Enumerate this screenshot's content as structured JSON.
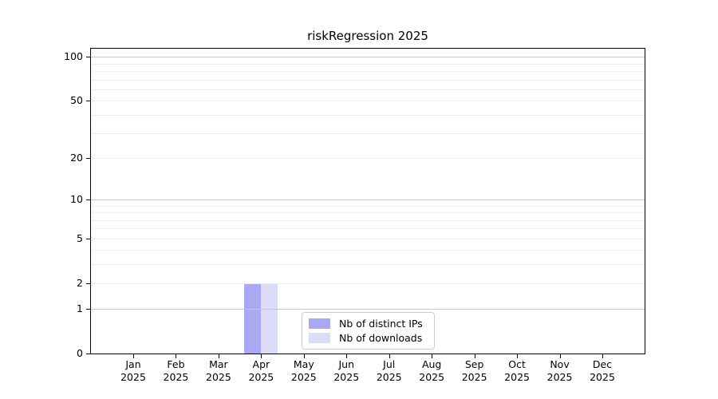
{
  "chart_data": {
    "type": "bar",
    "title": "riskRegression 2025",
    "months": [
      "Jan",
      "Feb",
      "Mar",
      "Apr",
      "May",
      "Jun",
      "Jul",
      "Aug",
      "Sep",
      "Oct",
      "Nov",
      "Dec"
    ],
    "year": "2025",
    "categories": [
      "Jan 2025",
      "Feb 2025",
      "Mar 2025",
      "Apr 2025",
      "May 2025",
      "Jun 2025",
      "Jul 2025",
      "Aug 2025",
      "Sep 2025",
      "Oct 2025",
      "Nov 2025",
      "Dec 2025"
    ],
    "series": [
      {
        "name": "Nb of distinct IPs",
        "color": "#a9a9f1",
        "values": [
          0,
          0,
          0,
          2,
          0,
          0,
          0,
          0,
          0,
          0,
          0,
          0
        ]
      },
      {
        "name": "Nb of downloads",
        "color": "#dcdcf8",
        "values": [
          0,
          0,
          0,
          2,
          0,
          0,
          0,
          0,
          0,
          0,
          0,
          0
        ]
      }
    ],
    "xlabel": "",
    "ylabel": "",
    "yscale": "log1p",
    "ylim": [
      0,
      114
    ],
    "yticks": [
      0,
      1,
      2,
      5,
      10,
      20,
      50,
      100
    ],
    "y_major_gridlines": [
      1,
      10,
      100
    ],
    "y_minor_gridlines": [
      2,
      3,
      4,
      5,
      6,
      7,
      8,
      9,
      20,
      30,
      40,
      50,
      60,
      70,
      80,
      90
    ],
    "grid": true,
    "legend_position": "bottom-center-inside"
  },
  "colors": {
    "background": "#ffffff",
    "axis": "#000000",
    "text": "#000000",
    "major_grid": "#c8c8c8",
    "minor_grid": "#ededed",
    "legend_border": "#cccccc"
  }
}
